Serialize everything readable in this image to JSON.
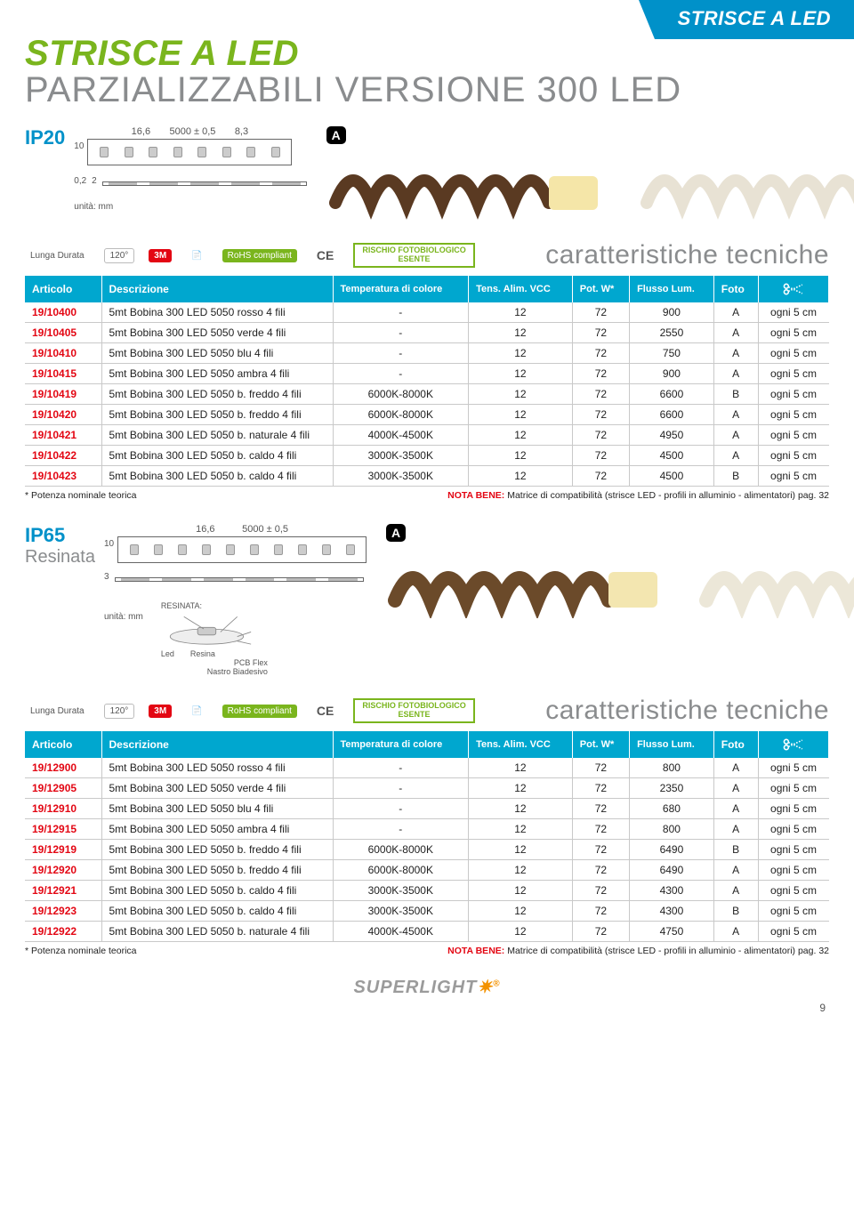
{
  "corner_tab": "STRISCE A LED",
  "title_green": "STRISCE A LED",
  "title_gray": "PARZIALIZZABILI VERSIONE 300 LED",
  "section_ip20": {
    "badge": "IP20",
    "dim_length": "5000 ± 0,5",
    "dim_w1": "16,6",
    "dim_w2": "8,3",
    "dim_h": "10",
    "dim_h2": "0,2",
    "dim_h3": "2",
    "unit": "unità: mm"
  },
  "section_ip65": {
    "badge": "IP65",
    "sub": "Resinata",
    "dim_length": "5000 ± 0,5",
    "dim_w1": "16,6",
    "dim_h": "10",
    "dim_h2": "3",
    "unit": "unità: mm",
    "res_title": "RESINATA:",
    "res_led": "Led",
    "res_resina": "Resina",
    "res_pcb": "PCB Flex",
    "res_nastro": "Nastro Biadesivo"
  },
  "letters": {
    "a": "A",
    "b": "B"
  },
  "cert": {
    "durata": "Lunga Durata",
    "angle": "120°",
    "m3": "3M",
    "pdf": "PDF",
    "rohs": "RoHS compliant",
    "ce": "CE",
    "rischi1": "RISCHIO FOTOBIOLOGICO",
    "rischi2": "ESENTE"
  },
  "ct_title": "caratteristiche tecniche",
  "columns": [
    "Articolo",
    "Descrizione",
    "Temperatura di colore",
    "Tens. Alim. VCC",
    "Pot. W*",
    "Flusso Lum.",
    "Foto",
    ""
  ],
  "table1": [
    [
      "19/10400",
      "5mt Bobina 300 LED 5050 rosso 4 fili",
      "-",
      "12",
      "72",
      "900",
      "A",
      "ogni 5 cm"
    ],
    [
      "19/10405",
      "5mt Bobina 300 LED 5050 verde 4 fili",
      "-",
      "12",
      "72",
      "2550",
      "A",
      "ogni 5 cm"
    ],
    [
      "19/10410",
      "5mt Bobina 300 LED 5050 blu 4 fili",
      "-",
      "12",
      "72",
      "750",
      "A",
      "ogni 5 cm"
    ],
    [
      "19/10415",
      "5mt Bobina 300 LED 5050 ambra 4 fili",
      "-",
      "12",
      "72",
      "900",
      "A",
      "ogni 5 cm"
    ],
    [
      "19/10419",
      "5mt Bobina 300 LED 5050 b. freddo 4 fili",
      "6000K-8000K",
      "12",
      "72",
      "6600",
      "B",
      "ogni 5 cm"
    ],
    [
      "19/10420",
      "5mt Bobina 300 LED 5050 b. freddo 4 fili",
      "6000K-8000K",
      "12",
      "72",
      "6600",
      "A",
      "ogni 5 cm"
    ],
    [
      "19/10421",
      "5mt Bobina 300 LED 5050 b. naturale 4 fili",
      "4000K-4500K",
      "12",
      "72",
      "4950",
      "A",
      "ogni 5 cm"
    ],
    [
      "19/10422",
      "5mt Bobina 300 LED 5050 b. caldo 4 fili",
      "3000K-3500K",
      "12",
      "72",
      "4500",
      "A",
      "ogni 5 cm"
    ],
    [
      "19/10423",
      "5mt Bobina 300 LED 5050 b. caldo 4 fili",
      "3000K-3500K",
      "12",
      "72",
      "4500",
      "B",
      "ogni 5 cm"
    ]
  ],
  "table2": [
    [
      "19/12900",
      "5mt Bobina 300 LED 5050 rosso 4 fili",
      "-",
      "12",
      "72",
      "800",
      "A",
      "ogni 5 cm"
    ],
    [
      "19/12905",
      "5mt Bobina 300 LED 5050 verde 4 fili",
      "-",
      "12",
      "72",
      "2350",
      "A",
      "ogni 5 cm"
    ],
    [
      "19/12910",
      "5mt Bobina 300 LED 5050 blu 4 fili",
      "-",
      "12",
      "72",
      "680",
      "A",
      "ogni 5 cm"
    ],
    [
      "19/12915",
      "5mt Bobina 300 LED 5050 ambra 4 fili",
      "-",
      "12",
      "72",
      "800",
      "A",
      "ogni 5 cm"
    ],
    [
      "19/12919",
      "5mt Bobina 300 LED 5050 b. freddo 4 fili",
      "6000K-8000K",
      "12",
      "72",
      "6490",
      "B",
      "ogni 5 cm"
    ],
    [
      "19/12920",
      "5mt Bobina 300 LED 5050 b. freddo 4 fili",
      "6000K-8000K",
      "12",
      "72",
      "6490",
      "A",
      "ogni 5 cm"
    ],
    [
      "19/12921",
      "5mt Bobina 300 LED 5050 b. caldo 4 fili",
      "3000K-3500K",
      "12",
      "72",
      "4300",
      "A",
      "ogni 5 cm"
    ],
    [
      "19/12923",
      "5mt Bobina 300 LED 5050 b. caldo 4 fili",
      "3000K-3500K",
      "12",
      "72",
      "4300",
      "B",
      "ogni 5 cm"
    ],
    [
      "19/12922",
      "5mt Bobina 300 LED 5050 b. naturale 4 fili",
      "4000K-4500K",
      "12",
      "72",
      "4750",
      "A",
      "ogni 5 cm"
    ]
  ],
  "footnote_left": "* Potenza nominale teorica",
  "footnote_nb_label": "NOTA BENE:",
  "footnote_nb_text": " Matrice di compatibilità (strisce LED - profili in alluminio - alimentatori) pag. 32",
  "footer_logo": "SUPERLIGHT",
  "page_num": "9",
  "colors": {
    "teal": "#00a7cf",
    "blue": "#0091c9",
    "green": "#7ab51d",
    "gray": "#8a8c8e",
    "red": "#e30613",
    "orange": "#f39200"
  }
}
